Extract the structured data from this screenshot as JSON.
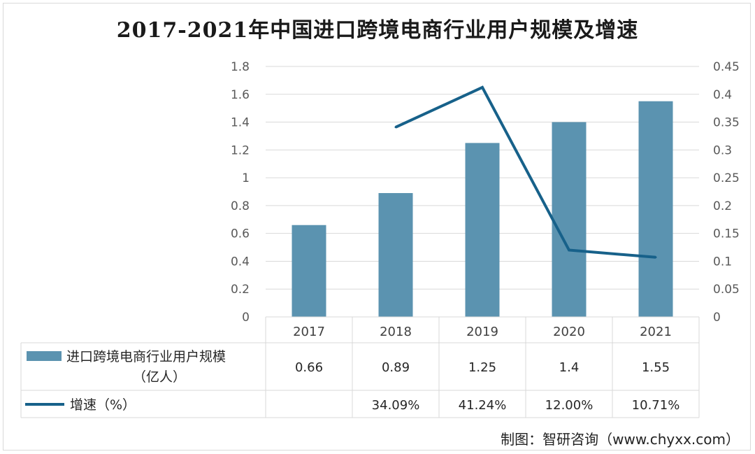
{
  "chart_data": {
    "type": "bar",
    "title": "2017-2021年中国进口跨境电商行业用户规模及增速",
    "categories": [
      "2017",
      "2018",
      "2019",
      "2020",
      "2021"
    ],
    "series": [
      {
        "name": "进口跨境电商行业用户规模（亿人）",
        "type": "bar",
        "axis": "left",
        "values": [
          0.66,
          0.89,
          1.25,
          1.4,
          1.55
        ],
        "table_labels": [
          "0.66",
          "0.89",
          "1.25",
          "1.4",
          "1.55"
        ],
        "color": "#5b93b0"
      },
      {
        "name": "增速（%）",
        "type": "line",
        "axis": "right",
        "values": [
          null,
          0.3409,
          0.4124,
          0.12,
          0.1071
        ],
        "table_labels": [
          "",
          "34.09%",
          "41.24%",
          "12.00%",
          "10.71%"
        ],
        "color": "#17618a"
      }
    ],
    "legend_labels": {
      "bar_line1": "进口跨境电商行业用户规模",
      "bar_line2": "（亿人）",
      "line": "增速（%）"
    },
    "y_left": {
      "ylim": [
        0,
        1.8
      ],
      "ticks": [
        0,
        0.2,
        0.4,
        0.6,
        0.8,
        1,
        1.2,
        1.4,
        1.6,
        1.8
      ],
      "tick_labels": [
        "0",
        "0.2",
        "0.4",
        "0.6",
        "0.8",
        "1",
        "1.2",
        "1.4",
        "1.6",
        "1.8"
      ]
    },
    "y_right": {
      "ylim": [
        0,
        0.45
      ],
      "ticks": [
        0,
        0.05,
        0.1,
        0.15,
        0.2,
        0.25,
        0.3,
        0.35,
        0.4,
        0.45
      ],
      "tick_labels": [
        "0",
        "0.05",
        "0.1",
        "0.15",
        "0.2",
        "0.25",
        "0.3",
        "0.35",
        "0.4",
        "0.45"
      ]
    },
    "grid": true,
    "legend": "data-table"
  },
  "source": "制图：智研咨询（www.chyxx.com）"
}
